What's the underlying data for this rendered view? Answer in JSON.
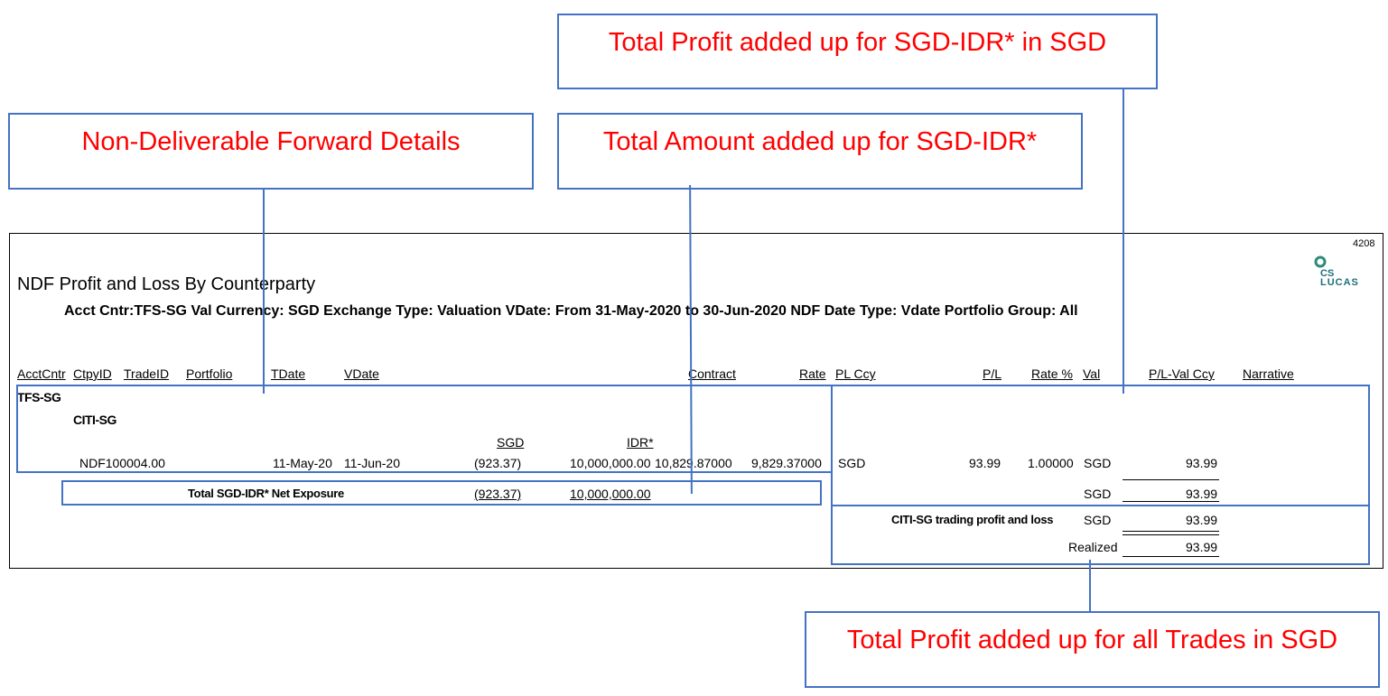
{
  "callouts": {
    "profit_sgd": "Total Profit added up for SGD-IDR* in SGD",
    "ndf_details": "Non-Deliverable Forward Details",
    "total_amount": "Total Amount added up for SGD-IDR*",
    "profit_all": "Total Profit added up for all Trades in SGD"
  },
  "report": {
    "page_number": "4208",
    "logo": {
      "line1": "CS",
      "line2": "LUCAS"
    },
    "title": "NDF Profit and Loss By Counterparty",
    "subtitle": "Acct Cntr:TFS-SG Val Currency: SGD Exchange Type: Valuation VDate: From  31-May-2020 to  30-Jun-2020  NDF Date Type: Vdate Portfolio Group: All",
    "headers": {
      "acctcntr": "AcctCntr",
      "ctpyid": "CtpyID",
      "tradeid": "TradeID",
      "portfolio": "Portfolio",
      "tdate": "TDate",
      "vdate": "VDate",
      "contract": "Contract",
      "rate": "Rate",
      "plccy": "PL Ccy",
      "pl": "P/L",
      "ratepct": "Rate %",
      "val": "Val",
      "plvalccy": "P/L-Val Ccy",
      "narrative": "Narrative"
    },
    "group": "TFS-SG",
    "counterparty": "CITI-SG",
    "ccy_header": {
      "sgd": "SGD",
      "idr": "IDR*"
    },
    "row": {
      "tradeid": "NDF100004.00",
      "tdate": "11-May-20",
      "vdate": "11-Jun-20",
      "sgd": "(923.37)",
      "idr": "10,000,000.00",
      "contract": "10,829.87000",
      "rate": "9,829.37000",
      "plccy": "SGD",
      "pl": "93.99",
      "ratepct": "1.00000",
      "val": "SGD",
      "plvalccy": "93.99"
    },
    "net_exposure": {
      "label": "Total SGD-IDR* Net Exposure",
      "sgd": "(923.37)",
      "idr": "10,000,000.00",
      "ccy": "SGD",
      "value": "93.99"
    },
    "trading_pl": {
      "label": "CITI-SG trading profit and loss",
      "ccy": "SGD",
      "value": "93.99"
    },
    "realized": {
      "label": "Realized",
      "value": "93.99"
    }
  }
}
